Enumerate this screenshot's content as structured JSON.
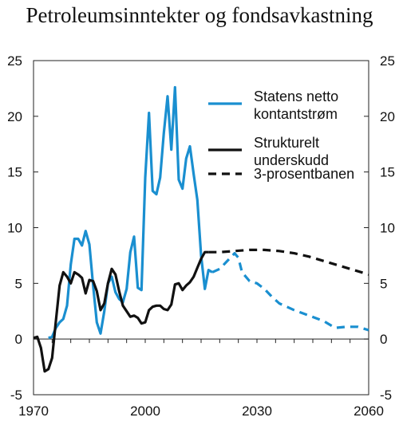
{
  "chart_data": {
    "type": "line",
    "title": "Petroleumsinntekter og fondsavkastning",
    "xlabel": "",
    "ylabel": "",
    "xlim": [
      1970,
      2060
    ],
    "ylim": [
      -5,
      25
    ],
    "x_ticks": [
      1970,
      2000,
      2030,
      2060
    ],
    "y_ticks": [
      -5,
      0,
      5,
      10,
      15,
      20,
      25
    ],
    "grid": false,
    "legend_position": "top-right",
    "series": [
      {
        "name": "Statens netto kontantstrøm",
        "color": "#1a8fd0",
        "style": "solid",
        "points": [
          [
            1974,
            0.1
          ],
          [
            1975,
            0.2
          ],
          [
            1976,
            1.0
          ],
          [
            1977,
            1.5
          ],
          [
            1978,
            1.8
          ],
          [
            1979,
            3.0
          ],
          [
            1980,
            6.7
          ],
          [
            1981,
            9.0
          ],
          [
            1982,
            9.0
          ],
          [
            1983,
            8.4
          ],
          [
            1984,
            9.7
          ],
          [
            1985,
            8.5
          ],
          [
            1986,
            4.8
          ],
          [
            1987,
            1.5
          ],
          [
            1988,
            0.5
          ],
          [
            1989,
            2.5
          ],
          [
            1990,
            5.0
          ],
          [
            1991,
            5.6
          ],
          [
            1992,
            4.2
          ],
          [
            1993,
            3.6
          ],
          [
            1994,
            3.3
          ],
          [
            1995,
            4.5
          ],
          [
            1996,
            7.8
          ],
          [
            1997,
            9.2
          ],
          [
            1998,
            4.6
          ],
          [
            1999,
            4.4
          ],
          [
            2000,
            14.5
          ],
          [
            2001,
            20.3
          ],
          [
            2002,
            13.3
          ],
          [
            2003,
            13.0
          ],
          [
            2004,
            14.5
          ],
          [
            2005,
            18.5
          ],
          [
            2006,
            21.8
          ],
          [
            2007,
            17.0
          ],
          [
            2008,
            22.6
          ],
          [
            2009,
            14.3
          ],
          [
            2010,
            13.5
          ],
          [
            2011,
            16.2
          ],
          [
            2012,
            17.3
          ],
          [
            2013,
            14.8
          ],
          [
            2014,
            12.5
          ],
          [
            2015,
            7.5
          ],
          [
            2016,
            4.5
          ],
          [
            2017,
            6.2
          ],
          [
            2018,
            6.0
          ]
        ]
      },
      {
        "name": "",
        "color": "#1a8fd0",
        "style": "dashed",
        "points": [
          [
            2018,
            6.0
          ],
          [
            2020,
            6.3
          ],
          [
            2022,
            7.0
          ],
          [
            2024,
            7.7
          ],
          [
            2025,
            7.3
          ],
          [
            2026,
            6.0
          ],
          [
            2028,
            5.2
          ],
          [
            2030,
            5.0
          ],
          [
            2032,
            4.5
          ],
          [
            2034,
            3.8
          ],
          [
            2036,
            3.2
          ],
          [
            2040,
            2.6
          ],
          [
            2044,
            2.1
          ],
          [
            2048,
            1.6
          ],
          [
            2051,
            1.0
          ],
          [
            2054,
            1.1
          ],
          [
            2057,
            1.1
          ],
          [
            2060,
            0.8
          ]
        ]
      },
      {
        "name": "Strukturelt underskudd",
        "color": "#111111",
        "style": "solid",
        "points": [
          [
            1970,
            0.1
          ],
          [
            1971,
            0.2
          ],
          [
            1972,
            -0.8
          ],
          [
            1973,
            -2.9
          ],
          [
            1974,
            -2.7
          ],
          [
            1975,
            -1.7
          ],
          [
            1976,
            1.6
          ],
          [
            1977,
            4.8
          ],
          [
            1978,
            6.0
          ],
          [
            1979,
            5.6
          ],
          [
            1980,
            5.0
          ],
          [
            1981,
            6.0
          ],
          [
            1982,
            5.8
          ],
          [
            1983,
            5.5
          ],
          [
            1984,
            4.1
          ],
          [
            1985,
            5.3
          ],
          [
            1986,
            5.2
          ],
          [
            1987,
            4.3
          ],
          [
            1988,
            2.6
          ],
          [
            1989,
            3.2
          ],
          [
            1990,
            5.0
          ],
          [
            1991,
            6.3
          ],
          [
            1992,
            5.8
          ],
          [
            1993,
            4.3
          ],
          [
            1994,
            3.0
          ],
          [
            1995,
            2.5
          ],
          [
            1996,
            2.0
          ],
          [
            1997,
            2.1
          ],
          [
            1998,
            1.9
          ],
          [
            1999,
            1.4
          ],
          [
            2000,
            1.5
          ],
          [
            2001,
            2.6
          ],
          [
            2002,
            2.9
          ],
          [
            2003,
            3.0
          ],
          [
            2004,
            3.0
          ],
          [
            2005,
            2.7
          ],
          [
            2006,
            2.6
          ],
          [
            2007,
            3.1
          ],
          [
            2008,
            4.9
          ],
          [
            2009,
            5.0
          ],
          [
            2010,
            4.4
          ],
          [
            2011,
            4.8
          ],
          [
            2012,
            5.1
          ],
          [
            2013,
            5.6
          ],
          [
            2014,
            6.4
          ],
          [
            2015,
            7.2
          ],
          [
            2016,
            7.8
          ],
          [
            2017,
            7.8
          ]
        ]
      },
      {
        "name": "3-prosentbanen",
        "color": "#111111",
        "style": "dashed",
        "points": [
          [
            2017,
            7.8
          ],
          [
            2020,
            7.8
          ],
          [
            2024,
            7.9
          ],
          [
            2028,
            8.0
          ],
          [
            2032,
            8.0
          ],
          [
            2036,
            7.9
          ],
          [
            2040,
            7.7
          ],
          [
            2044,
            7.4
          ],
          [
            2048,
            7.0
          ],
          [
            2052,
            6.6
          ],
          [
            2056,
            6.2
          ],
          [
            2060,
            5.8
          ]
        ]
      }
    ]
  }
}
